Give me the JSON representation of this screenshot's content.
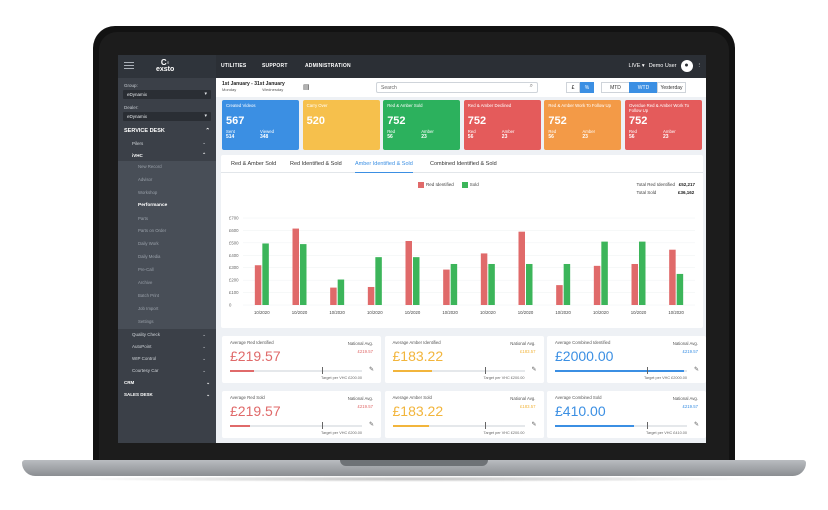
{
  "app": {
    "logo_symbol": "C◦",
    "logo_name": "exsto",
    "nav": [
      "UTILITIES",
      "SUPPORT",
      "ADMINISTRATION"
    ],
    "env": "LIVE ▾",
    "user": "Demo User",
    "avatar_icon": "person-icon",
    "more_icon": "⋮"
  },
  "sidebar": {
    "group_label": "Group:",
    "group_value": "eDynamix",
    "dealer_label": "Dealer:",
    "dealer_value": "eDynamix",
    "section": "SERVICE DESK",
    "items_top": [
      "Pilers",
      "iVHC"
    ],
    "subitems": [
      "New Record",
      "Advisor",
      "Workshop",
      "Performance",
      "Parts",
      "Parts on Order",
      "Daily Work",
      "Daily Media",
      "Pre-Call",
      "Archive",
      "Batch Print",
      "Job Import",
      "Settings"
    ],
    "active_subitem": "Performance",
    "items_bottom": [
      "Quality Check",
      "AutoPoint",
      "WIP Control",
      "Courtesy Car"
    ],
    "crm": "CRM",
    "sales": "SALES DESK"
  },
  "filter": {
    "date_range": "1st January - 31st January",
    "day_from": "Monday",
    "day_to": "Wednesday",
    "search_placeholder": "Search",
    "currency": "£",
    "percent": "%",
    "periods": [
      "MTD",
      "WTD",
      "Yesterday"
    ],
    "active_period": "WTD"
  },
  "kpis": [
    {
      "title": "Created Videos",
      "value": "567",
      "l1": "Sent",
      "v1": "514",
      "l2": "Viewed",
      "v2": "348",
      "color": "#3b8fe3"
    },
    {
      "title": "Carry Over",
      "value": "520",
      "l1": "",
      "v1": "",
      "l2": "",
      "v2": "",
      "color": "#f6c04c"
    },
    {
      "title": "Red & Amber Sold",
      "value": "752",
      "l1": "Red",
      "v1": "56",
      "l2": "Amber",
      "v2": "23",
      "color": "#2cb15d"
    },
    {
      "title": "Red & Amber Declined",
      "value": "752",
      "l1": "Red",
      "v1": "56",
      "l2": "Amber",
      "v2": "23",
      "color": "#e45b5b"
    },
    {
      "title": "Red & Amber Work To Follow Up",
      "value": "752",
      "l1": "Red",
      "v1": "56",
      "l2": "Amber",
      "v2": "23",
      "color": "#f39a47"
    },
    {
      "title": "Overdue Red & Amber Work To Follow Up",
      "value": "752",
      "l1": "Red",
      "v1": "56",
      "l2": "Amber",
      "v2": "23",
      "color": "#e45b5b"
    }
  ],
  "tabs": [
    "Red & Amber Sold",
    "Red Identified & Sold",
    "Amber Identified & Sold",
    "Combined Identified & Sold"
  ],
  "active_tab": "Amber Identified & Sold",
  "totals": {
    "identified_label": "Total Red Identified",
    "identified_value": "£52,217",
    "sold_label": "Total Sold",
    "sold_value": "£36,162"
  },
  "chart_data": {
    "type": "bar",
    "categories": [
      "10/2020",
      "10/2020",
      "10/2020",
      "10/2020",
      "10/2020",
      "10/2020",
      "10/2020",
      "10/2020",
      "10/2020",
      "10/2020",
      "10/2020",
      "10/2020"
    ],
    "series": [
      {
        "name": "Red Identified",
        "color": "#e06a6a",
        "values": [
          320,
          615,
          140,
          145,
          515,
          285,
          415,
          590,
          160,
          315,
          330,
          445
        ]
      },
      {
        "name": "Sold",
        "color": "#3cb55a",
        "values": [
          495,
          490,
          205,
          385,
          385,
          330,
          330,
          330,
          330,
          510,
          510,
          250
        ]
      }
    ],
    "y_ticks": [
      "£700",
      "£600",
      "£500",
      "£400",
      "£300",
      "£200",
      "£100",
      "0"
    ],
    "ylim": [
      0,
      700
    ],
    "legend_position": "top-center"
  },
  "cards": [
    {
      "label": "Average Red Identified",
      "value": "£219.57",
      "nat_label": "National Avg.",
      "nat_value": "£219.57",
      "target": "Target per VHC £200.00",
      "color": "#e06a6a",
      "progress": 0.18
    },
    {
      "label": "Average Amber Identified",
      "value": "£183.22",
      "nat_label": "National Avg.",
      "nat_value": "£183.57",
      "target": "Target per VHC £200.00",
      "color": "#f2b53c",
      "progress": 0.3
    },
    {
      "label": "Average Combined Identified",
      "value": "£2000.00",
      "nat_label": "National Avg.",
      "nat_value": "£219.57",
      "target": "Target per VHC £2000.00",
      "color": "#3b8fe3",
      "progress": 0.98
    },
    {
      "label": "Average Red Sold",
      "value": "£219.57",
      "nat_label": "National Avg.",
      "nat_value": "£219.57",
      "target": "Target per VHC £200.00",
      "color": "#e06a6a",
      "progress": 0.15
    },
    {
      "label": "Average Amber Sold",
      "value": "£183.22",
      "nat_label": "National Avg.",
      "nat_value": "£183.57",
      "target": "Target per VHC £200.00",
      "color": "#f2b53c",
      "progress": 0.28
    },
    {
      "label": "Average Combined Sold",
      "value": "£410.00",
      "nat_label": "National Avg.",
      "nat_value": "£219.57",
      "target": "Target per VHC £410.00",
      "color": "#3b8fe3",
      "progress": 0.6
    }
  ]
}
